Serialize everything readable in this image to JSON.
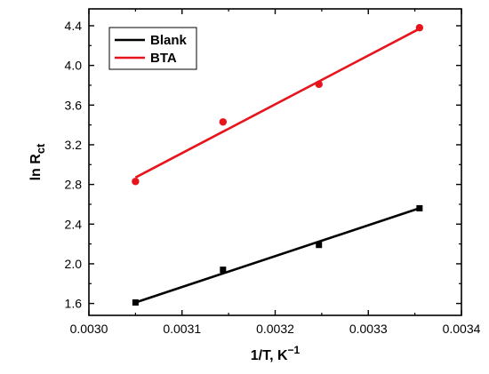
{
  "chart_data": {
    "type": "scatter",
    "xlabel": {
      "main": "1/T, K",
      "superscript": "−1"
    },
    "ylabel": {
      "main": "ln R",
      "subscript": "ct"
    },
    "xlim": [
      0.003,
      0.0034
    ],
    "ylim": [
      1.48,
      4.57
    ],
    "x_ticks": [
      {
        "value": 0.003,
        "label": "0.0030"
      },
      {
        "value": 0.0031,
        "label": "0.0031"
      },
      {
        "value": 0.0032,
        "label": "0.0032"
      },
      {
        "value": 0.0033,
        "label": "0.0033"
      },
      {
        "value": 0.0034,
        "label": "0.0034"
      }
    ],
    "y_ticks": [
      {
        "value": 1.6,
        "label": "1.6"
      },
      {
        "value": 2.0,
        "label": "2.0"
      },
      {
        "value": 2.4,
        "label": "2.4"
      },
      {
        "value": 2.8,
        "label": "2.8"
      },
      {
        "value": 3.2,
        "label": "3.2"
      },
      {
        "value": 3.6,
        "label": "3.6"
      },
      {
        "value": 4.0,
        "label": "4.0"
      },
      {
        "value": 4.4,
        "label": "4.4"
      }
    ],
    "legend_placement": "top-left",
    "grid": false,
    "series": [
      {
        "name": "Blank",
        "color": "#000000",
        "marker": "square",
        "x": [
          0.00305,
          0.003144,
          0.003247,
          0.003355
        ],
        "y": [
          1.61,
          1.94,
          2.19,
          2.56
        ],
        "fit": {
          "x": [
            0.00305,
            0.003355
          ],
          "y": [
            1.61,
            2.56
          ]
        }
      },
      {
        "name": "BTA",
        "color": "#e8141b",
        "marker": "circle",
        "x": [
          0.00305,
          0.003144,
          0.003247,
          0.003355
        ],
        "y": [
          2.83,
          3.43,
          3.81,
          4.38
        ],
        "fit": {
          "x": [
            0.00305,
            0.003355
          ],
          "y": [
            2.87,
            4.37
          ]
        }
      }
    ]
  }
}
